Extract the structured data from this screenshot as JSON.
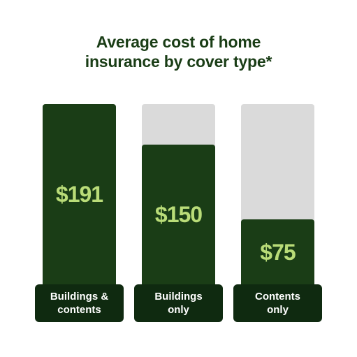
{
  "chart_data": {
    "type": "bar",
    "title_lines": [
      "Average cost of home",
      "insurance by cover type*"
    ],
    "categories": [
      [
        "Buildings &",
        "contents"
      ],
      [
        "Buildings",
        "only"
      ],
      [
        "Contents",
        "only"
      ]
    ],
    "values": [
      191,
      150,
      75
    ],
    "value_labels": [
      "$191",
      "$150",
      "$75"
    ],
    "ylim": [
      0,
      191
    ],
    "colors": {
      "bar": "#1a3d16",
      "track": "#dadada",
      "label_bg": "#0f2a10",
      "value_text": "#b9dc78",
      "title": "#1a3d16"
    }
  }
}
